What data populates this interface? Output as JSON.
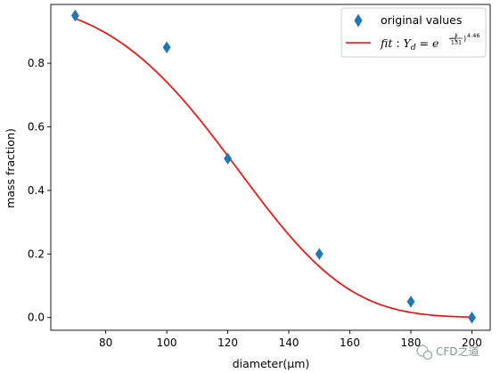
{
  "chart_data": {
    "type": "scatter",
    "xlabel": "diameter(μm)",
    "ylabel": "mass fraction)",
    "xlim": [
      62,
      206
    ],
    "ylim": [
      -0.04,
      0.985
    ],
    "xticks": [
      80,
      100,
      120,
      140,
      160,
      180,
      200
    ],
    "yticks": [
      0.0,
      0.2,
      0.4,
      0.6,
      0.8
    ],
    "ytick_labels": [
      "0.0",
      "0.2",
      "0.4",
      "0.6",
      "0.8"
    ],
    "grid": false,
    "legend_position": "top-right",
    "series": [
      {
        "name": "original values",
        "kind": "scatter",
        "marker": "thin-diamond",
        "color": "#1f77b4",
        "x": [
          70,
          100,
          120,
          150,
          180,
          200
        ],
        "y": [
          0.95,
          0.85,
          0.5,
          0.2,
          0.05,
          0.0
        ]
      },
      {
        "name": "fit",
        "kind": "line",
        "color": "#ff0000",
        "function": "Rosin-Rammler",
        "parameters": {
          "d": 131,
          "n": 4.46
        },
        "x_range": [
          70,
          200
        ]
      }
    ],
    "legend": {
      "scatter_label": "original values",
      "fit_label": {
        "prefix": "fit",
        "colon": " : ",
        "y": "Y",
        "y_sub": "d",
        "equals": " = ",
        "base": "e",
        "exp_minus": "−(",
        "frac_num": "x",
        "frac_den": "131",
        "exp_close": ")",
        "exp_power": "4.46"
      }
    }
  },
  "watermark": {
    "text": "CFD之道",
    "icon": "wechat-icon"
  }
}
